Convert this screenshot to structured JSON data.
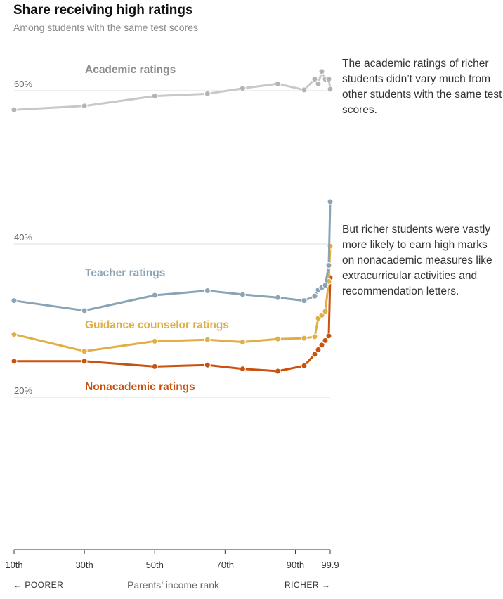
{
  "header": {
    "title": "Share receiving high ratings",
    "subtitle": "Among students with the same test scores"
  },
  "annotations": {
    "academic_note": "The academic ratings of richer students didn’t vary much from other students with the same test scores.",
    "nonacademic_note": "But richer students were vastly more likely to earn high marks on nonacademic measures like extracurricular activities and recommendation letters."
  },
  "axis": {
    "x_title": "Parents’ income rank",
    "poorer_label": "← POORER",
    "richer_label": "RICHER →"
  },
  "colors": {
    "academic": "#c8c8c8",
    "academic_dot": "#b4b4b4",
    "teacher": "#8aa3b5",
    "guidance": "#e0ae45",
    "nonacademic": "#c9520e",
    "grid": "#dddddd",
    "axis": "#333333"
  },
  "chart_data": {
    "type": "line",
    "title": "Share receiving high ratings",
    "subtitle": "Among students with the same test scores",
    "xlabel": "Parents’ income rank",
    "ylabel": "",
    "xlim": [
      10,
      99.9
    ],
    "ylim": [
      0,
      66
    ],
    "x_ticks": [
      {
        "value": 10,
        "label": "10th"
      },
      {
        "value": 30,
        "label": "30th"
      },
      {
        "value": 50,
        "label": "50th"
      },
      {
        "value": 70,
        "label": "70th"
      },
      {
        "value": 90,
        "label": "90th"
      },
      {
        "value": 99.9,
        "label": "99.9"
      }
    ],
    "y_ticks": [
      {
        "value": 20,
        "label": "20%"
      },
      {
        "value": 40,
        "label": "40%"
      },
      {
        "value": 60,
        "label": "60%"
      }
    ],
    "grid": true,
    "x": [
      10,
      30,
      50,
      65,
      75,
      85,
      92.5,
      95.5,
      96.5,
      97.5,
      98.5,
      99.5,
      99.9
    ],
    "series": [
      {
        "name": "Academic ratings",
        "color_key": "academic",
        "values": [
          57.5,
          58.0,
          59.3,
          59.6,
          60.3,
          60.9,
          60.1,
          61.5,
          60.9,
          62.5,
          61.5,
          61.5,
          60.2
        ]
      },
      {
        "name": "Teacher ratings",
        "color_key": "teacher",
        "values": [
          32.6,
          31.3,
          33.3,
          33.9,
          33.4,
          33.0,
          32.6,
          33.2,
          34.0,
          34.3,
          34.6,
          37.2,
          45.5
        ]
      },
      {
        "name": "Guidance counselor ratings",
        "color_key": "guidance",
        "values": [
          28.2,
          26.0,
          27.3,
          27.5,
          27.2,
          27.6,
          27.7,
          27.9,
          30.3,
          30.7,
          31.2,
          35.1,
          39.7
        ]
      },
      {
        "name": "Nonacademic ratings",
        "color_key": "nonacademic",
        "values": [
          24.7,
          24.7,
          24.0,
          24.2,
          23.7,
          23.4,
          24.1,
          25.6,
          26.2,
          26.8,
          27.4,
          28.0,
          35.6
        ]
      }
    ]
  }
}
